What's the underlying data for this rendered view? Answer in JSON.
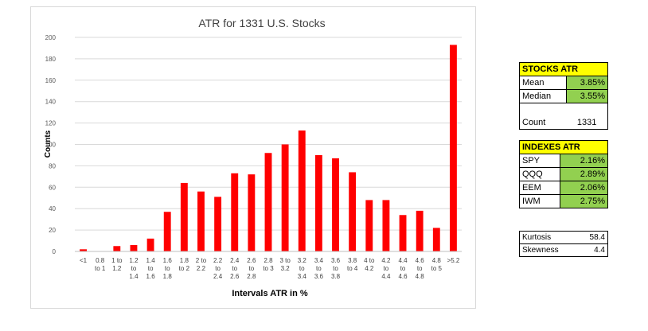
{
  "chart_data": {
    "type": "bar",
    "title": "ATR for 1331 U.S. Stocks",
    "xlabel": "Intervals ATR in %",
    "ylabel": "Counts",
    "ylim": [
      0,
      200
    ],
    "yticks": [
      "0",
      "20",
      "40",
      "60",
      "80",
      "100",
      "120",
      "140",
      "160",
      "180",
      "200"
    ],
    "grid": true,
    "categories": [
      [
        "<1"
      ],
      [
        "0.8",
        "to 1"
      ],
      [
        "1 to",
        "1.2"
      ],
      [
        "1.2",
        "to",
        "1.4"
      ],
      [
        "1.4",
        "to",
        "1.6"
      ],
      [
        "1.6",
        "to",
        "1.8"
      ],
      [
        "1.8",
        "to 2"
      ],
      [
        "2 to",
        "2.2"
      ],
      [
        "2.2",
        "to",
        "2.4"
      ],
      [
        "2.4",
        "to",
        "2.6"
      ],
      [
        "2.6",
        "to",
        "2.8"
      ],
      [
        "2.8",
        "to 3"
      ],
      [
        "3 to",
        "3.2"
      ],
      [
        "3.2",
        "to",
        "3.4"
      ],
      [
        "3.4",
        "to",
        "3.6"
      ],
      [
        "3.6",
        "to",
        "3.8"
      ],
      [
        "3.8",
        "to 4"
      ],
      [
        "4 to",
        "4.2"
      ],
      [
        "4.2",
        "to",
        "4.4"
      ],
      [
        "4.4",
        "to",
        "4.6"
      ],
      [
        "4.6",
        "to",
        "4.8"
      ],
      [
        "4.8",
        "to 5"
      ],
      [
        ">5.2"
      ]
    ],
    "values": [
      2,
      0,
      5,
      6,
      12,
      37,
      64,
      56,
      51,
      73,
      72,
      92,
      100,
      113,
      90,
      87,
      74,
      48,
      48,
      34,
      38,
      22,
      193
    ],
    "bar_color": "#ff0000"
  },
  "stocks_atr": {
    "header": "STOCKS ATR",
    "mean_label": "Mean",
    "mean_value": "3.85%",
    "median_label": "Median",
    "median_value": "3.55%",
    "count_label": "Count",
    "count_value": "1331"
  },
  "indexes_atr": {
    "header": "INDEXES ATR",
    "rows": [
      {
        "label": "SPY",
        "value": "2.16%"
      },
      {
        "label": "QQQ",
        "value": "2.89%"
      },
      {
        "label": "EEM",
        "value": "2.06%"
      },
      {
        "label": "IWM",
        "value": "2.75%"
      }
    ]
  },
  "moments": {
    "kurtosis_label": "Kurtosis",
    "kurtosis_value": "58.4",
    "skewness_label": "Skewness",
    "skewness_value": "4.4"
  },
  "colors": {
    "header_yellow": "#ffff00",
    "value_green": "#92d050",
    "bar_red": "#ff0000"
  }
}
